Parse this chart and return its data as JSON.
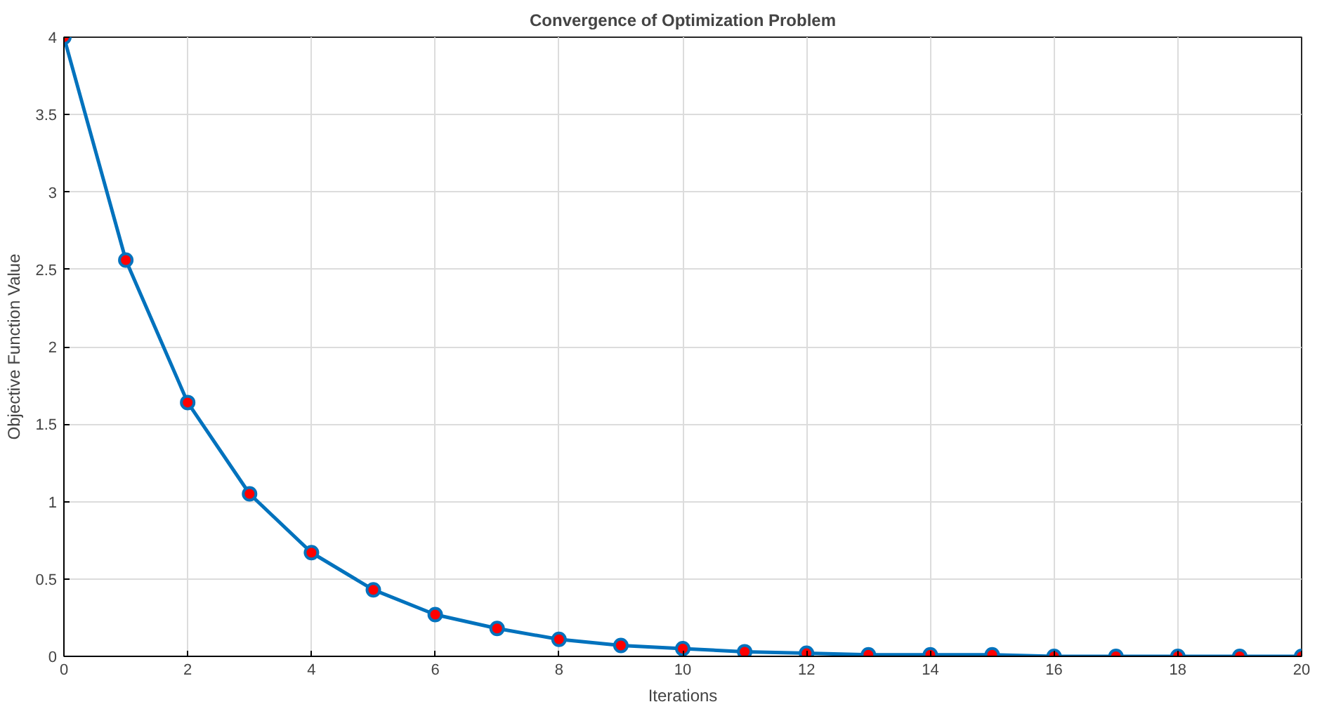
{
  "chart_data": {
    "type": "line",
    "title": "Convergence of Optimization Problem",
    "xlabel": "Iterations",
    "ylabel": "Objective Function Value",
    "x": [
      0,
      1,
      2,
      3,
      4,
      5,
      6,
      7,
      8,
      9,
      10,
      11,
      12,
      13,
      14,
      15,
      16,
      17,
      18,
      19,
      20
    ],
    "series": [
      {
        "color": "#0072bd",
        "values": [
          4,
          2.56,
          1.64,
          1.05,
          0.67,
          0.43,
          0.27,
          0.18,
          0.11,
          0.07,
          0.05,
          0.03,
          0.02,
          0.01,
          0.01,
          0.01,
          0,
          0,
          0,
          0,
          0
        ]
      }
    ],
    "xlim": [
      0,
      20
    ],
    "ylim": [
      0,
      4
    ],
    "xticks": [
      0,
      2,
      4,
      6,
      8,
      10,
      12,
      14,
      16,
      18,
      20
    ],
    "yticks": [
      0,
      0.5,
      1,
      1.5,
      2,
      2.5,
      3,
      3.5,
      4
    ],
    "grid": true,
    "marker": "circle",
    "line_style": "solid"
  }
}
